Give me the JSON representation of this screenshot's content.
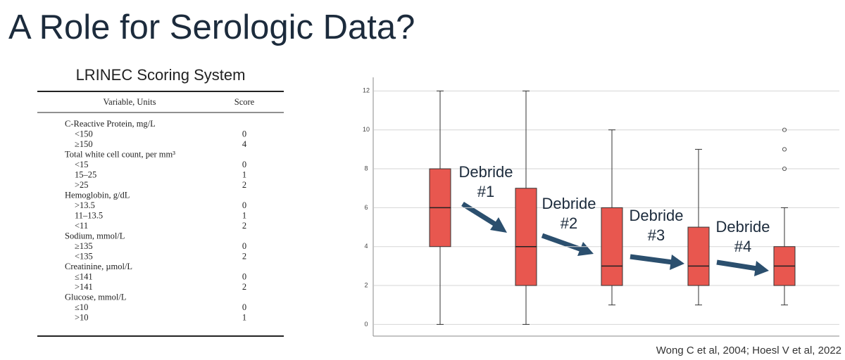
{
  "title": "A Role for Serologic Data?",
  "table": {
    "title": "LRINEC Scoring System",
    "headers": [
      "Variable, Units",
      "Score"
    ],
    "rows": [
      {
        "label": "C-Reactive Protein, mg/L"
      },
      {
        "label": "<150",
        "score": 0
      },
      {
        "label": "≥150",
        "score": 4
      },
      {
        "label": "Total white cell count, per mm³"
      },
      {
        "label": "<15",
        "score": 0
      },
      {
        "label": "15–25",
        "score": 1
      },
      {
        "label": ">25",
        "score": 2
      },
      {
        "label": "Hemoglobin, g/dL"
      },
      {
        "label": ">13.5",
        "score": 0
      },
      {
        "label": "11–13.5",
        "score": 1
      },
      {
        "label": "<11",
        "score": 2
      },
      {
        "label": "Sodium, mmol/L"
      },
      {
        "label": "≥135",
        "score": 0
      },
      {
        "label": "<135",
        "score": 2
      },
      {
        "label": "Creatinine, µmol/L"
      },
      {
        "label": "≤141",
        "score": 0
      },
      {
        "label": ">141",
        "score": 2
      },
      {
        "label": "Glucose, mmol/L"
      },
      {
        "label": "≤10",
        "score": 0
      },
      {
        "label": ">10",
        "score": 1
      }
    ]
  },
  "chart_data": {
    "type": "box",
    "color": "#e8574f",
    "ylim": [
      -0.6,
      12.7
    ],
    "yticks": [
      0,
      2,
      4,
      6,
      8,
      10,
      12
    ],
    "grid": true,
    "boxes": [
      {
        "min": 0,
        "q1": 4,
        "median": 6,
        "q3": 8,
        "max": 12,
        "outliers": []
      },
      {
        "min": 0,
        "q1": 2,
        "median": 4,
        "q3": 7,
        "max": 12,
        "outliers": []
      },
      {
        "min": 1,
        "q1": 2,
        "median": 3,
        "q3": 6,
        "max": 10,
        "outliers": []
      },
      {
        "min": 1,
        "q1": 2,
        "median": 3,
        "q3": 5,
        "max": 9,
        "outliers": []
      },
      {
        "min": 1,
        "q1": 2,
        "median": 3,
        "q3": 4,
        "max": 6,
        "outliers": [
          8,
          9,
          10
        ]
      }
    ],
    "annotations": [
      {
        "lines": [
          "Debride",
          "#1"
        ]
      },
      {
        "lines": [
          "Debride",
          "#2"
        ]
      },
      {
        "lines": [
          "Debride",
          "#3"
        ]
      },
      {
        "lines": [
          "Debride",
          "#4"
        ]
      }
    ]
  },
  "citation": "Wong C et al, 2004; Hoesl V et al, 2022"
}
